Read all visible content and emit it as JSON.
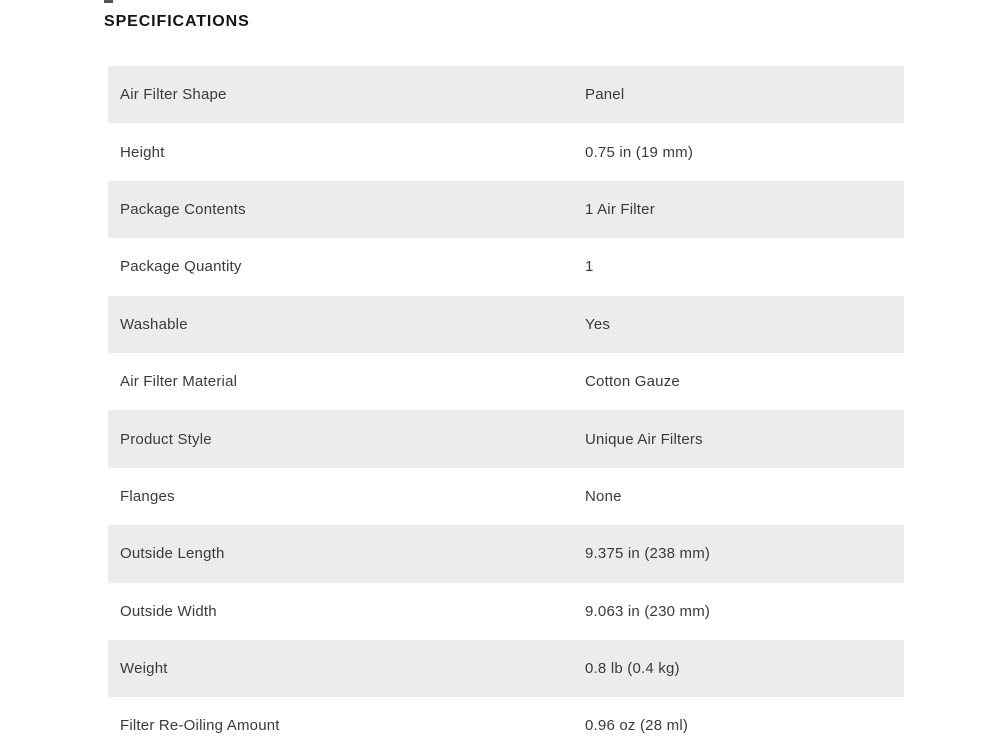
{
  "section": {
    "title": "SPECIFICATIONS"
  },
  "table": {
    "rows": [
      {
        "label": "Air Filter Shape",
        "value": "Panel"
      },
      {
        "label": "Height",
        "value": "0.75 in (19 mm)"
      },
      {
        "label": "Package Contents",
        "value": "1 Air Filter"
      },
      {
        "label": "Package Quantity",
        "value": "1"
      },
      {
        "label": "Washable",
        "value": "Yes"
      },
      {
        "label": "Air Filter Material",
        "value": "Cotton Gauze"
      },
      {
        "label": "Product Style",
        "value": "Unique Air Filters"
      },
      {
        "label": "Flanges",
        "value": "None"
      },
      {
        "label": "Outside Length",
        "value": "9.375 in (238 mm)"
      },
      {
        "label": "Outside Width",
        "value": "9.063 in (230 mm)"
      },
      {
        "label": "Weight",
        "value": "0.8 lb (0.4 kg)"
      },
      {
        "label": "Filter Re-Oiling Amount",
        "value": "0.96 oz (28 ml)"
      }
    ]
  },
  "colors": {
    "background": "#ffffff",
    "stripe": "#ececea",
    "text": "#3b3a39",
    "title": "#141414"
  }
}
